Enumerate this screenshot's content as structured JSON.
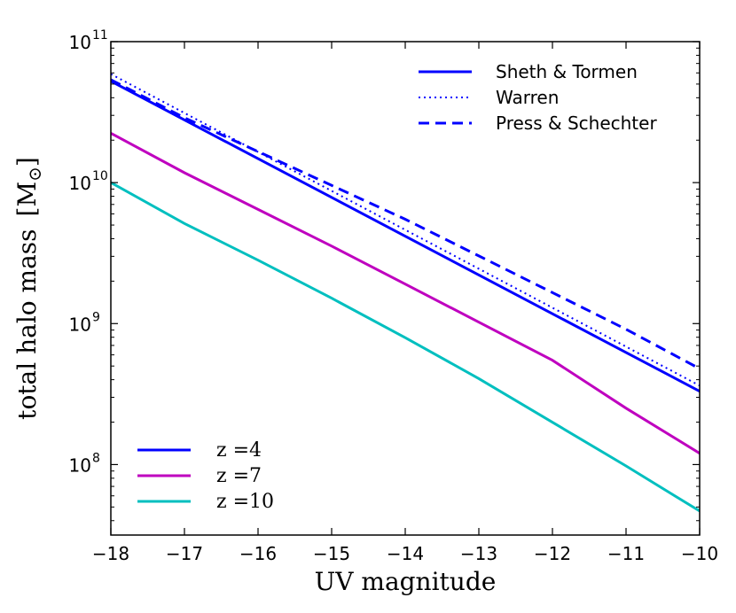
{
  "chart_data": {
    "type": "line",
    "xlabel": "UV magnitude",
    "ylabel": "total halo mass",
    "ylabel_unit": "[M",
    "ylabel_unit_sub": "⊙",
    "ylabel_unit_close": "]",
    "xlim": [
      -18,
      -10
    ],
    "ylim_log10": [
      7.5,
      11
    ],
    "yscale": "log",
    "x_ticks": [
      -18,
      -17,
      -16,
      -15,
      -14,
      -13,
      -12,
      -11,
      -10
    ],
    "x_tick_labels": [
      "−18",
      "−17",
      "−16",
      "−15",
      "−14",
      "−13",
      "−12",
      "−11",
      "−10"
    ],
    "y_ticks_log10": [
      8,
      9,
      10,
      11
    ],
    "y_tick_base": "10",
    "y_tick_exponents": [
      "8",
      "9",
      "10",
      "11"
    ],
    "series": [
      {
        "name": "Sheth & Tormen",
        "redshift": "z=4",
        "color": "#0000ff",
        "style": "solid",
        "x": [
          -18,
          -10
        ],
        "y_log10": [
          10.72,
          8.52
        ]
      },
      {
        "name": "Warren",
        "redshift": "z=4",
        "color": "#0000ff",
        "style": "dotted",
        "x": [
          -18,
          -10
        ],
        "y_log10": [
          10.77,
          8.56
        ]
      },
      {
        "name": "Press & Schechter",
        "redshift": "z=4",
        "color": "#0000ff",
        "style": "dashed",
        "x": [
          -18,
          -17,
          -16,
          -15,
          -14,
          -13,
          -12,
          -11,
          -10
        ],
        "y_log10": [
          10.73,
          10.46,
          10.22,
          9.98,
          9.74,
          9.48,
          9.22,
          8.96,
          8.68
        ]
      },
      {
        "name": "Sheth & Tormen",
        "redshift": "z=7",
        "color": "#bf00bf",
        "style": "solid",
        "x": [
          -18,
          -17,
          -16,
          -15,
          -14,
          -13,
          -12,
          -11,
          -10
        ],
        "y_log10": [
          10.35,
          10.07,
          9.81,
          9.55,
          9.28,
          9.01,
          8.74,
          8.4,
          8.08
        ]
      },
      {
        "name": "Sheth & Tormen",
        "redshift": "z=10",
        "color": "#00bfbf",
        "style": "solid",
        "x": [
          -18,
          -17,
          -16,
          -15,
          -14,
          -13,
          -12,
          -11,
          -10
        ],
        "y_log10": [
          10.0,
          9.71,
          9.45,
          9.18,
          8.9,
          8.61,
          8.3,
          7.99,
          7.67
        ]
      }
    ],
    "legend_models": {
      "position": "top-right",
      "entries": [
        {
          "label": "Sheth & Tormen",
          "style": "solid",
          "color": "#0000ff"
        },
        {
          "label": "Warren",
          "style": "dotted",
          "color": "#0000ff"
        },
        {
          "label": "Press & Schechter",
          "style": "dashed",
          "color": "#0000ff"
        }
      ]
    },
    "legend_redshift": {
      "position": "bottom-left",
      "entries": [
        {
          "label": "z =4",
          "style": "solid",
          "color": "#0000ff"
        },
        {
          "label": "z =7",
          "style": "solid",
          "color": "#bf00bf"
        },
        {
          "label": "z =10",
          "style": "solid",
          "color": "#00bfbf"
        }
      ]
    }
  }
}
